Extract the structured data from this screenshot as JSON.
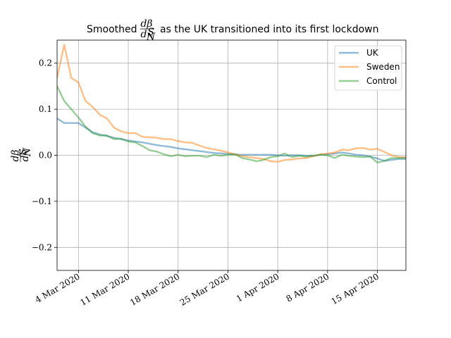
{
  "chart_data": {
    "type": "line",
    "title": "Smoothed as the UK transitioned into its first lockdown",
    "title_math": {
      "numerator": "dβ",
      "denominator_prefix": "d",
      "denominator_num": "S",
      "denominator_den": "N"
    },
    "ylabel_math": {
      "numerator": "dβ",
      "denominator_prefix": "d",
      "denominator_num": "S",
      "denominator_den": "N"
    },
    "xlabel": "",
    "x_start": "2020-03-01",
    "x_end": "2020-04-19",
    "x_ticks": [
      {
        "date": "2020-03-04",
        "label": "4 Mar 2020"
      },
      {
        "date": "2020-03-11",
        "label": "11 Mar 2020"
      },
      {
        "date": "2020-03-18",
        "label": "18 Mar 2020"
      },
      {
        "date": "2020-03-25",
        "label": "25 Mar 2020"
      },
      {
        "date": "2020-04-01",
        "label": "1 Apr 2020"
      },
      {
        "date": "2020-04-08",
        "label": "8 Apr 2020"
      },
      {
        "date": "2020-04-15",
        "label": "15 Apr 2020"
      }
    ],
    "ylim": [
      -0.25,
      0.25
    ],
    "y_ticks": [
      {
        "value": 0.2,
        "label": "0.2"
      },
      {
        "value": 0.1,
        "label": "0.1"
      },
      {
        "value": 0.0,
        "label": "0.0"
      },
      {
        "value": -0.1,
        "label": "−0.1"
      },
      {
        "value": -0.2,
        "label": "−0.2"
      }
    ],
    "grid": true,
    "legend_position": "top-right",
    "series": [
      {
        "name": "UK",
        "color": "#1f77b4",
        "points": [
          [
            "2020-02-29",
            0.115
          ],
          [
            "2020-03-01",
            0.08
          ],
          [
            "2020-03-02",
            0.07
          ],
          [
            "2020-03-03",
            0.07
          ],
          [
            "2020-03-04",
            0.07
          ],
          [
            "2020-03-05",
            0.06
          ],
          [
            "2020-03-06",
            0.05
          ],
          [
            "2020-03-07",
            0.045
          ],
          [
            "2020-03-08",
            0.042
          ],
          [
            "2020-03-09",
            0.038
          ],
          [
            "2020-03-10",
            0.035
          ],
          [
            "2020-03-11",
            0.032
          ],
          [
            "2020-03-12",
            0.03
          ],
          [
            "2020-03-13",
            0.028
          ],
          [
            "2020-03-14",
            0.025
          ],
          [
            "2020-03-15",
            0.022
          ],
          [
            "2020-03-16",
            0.02
          ],
          [
            "2020-03-17",
            0.018
          ],
          [
            "2020-03-18",
            0.015
          ],
          [
            "2020-03-19",
            0.013
          ],
          [
            "2020-03-20",
            0.011
          ],
          [
            "2020-03-21",
            0.009
          ],
          [
            "2020-03-22",
            0.007
          ],
          [
            "2020-03-23",
            0.005
          ],
          [
            "2020-03-24",
            0.004
          ],
          [
            "2020-03-25",
            0.003
          ],
          [
            "2020-03-26",
            0.002
          ],
          [
            "2020-03-27",
            0.001
          ],
          [
            "2020-03-28",
            0.001
          ],
          [
            "2020-03-29",
            0.001
          ],
          [
            "2020-03-30",
            0.001
          ],
          [
            "2020-03-31",
            0.001
          ],
          [
            "2020-04-01",
            0.0
          ],
          [
            "2020-04-02",
            -0.001
          ],
          [
            "2020-04-03",
            0.0
          ],
          [
            "2020-04-04",
            0.0
          ],
          [
            "2020-04-05",
            -0.001
          ],
          [
            "2020-04-06",
            -0.001
          ],
          [
            "2020-04-07",
            0.001
          ],
          [
            "2020-04-08",
            0.002
          ],
          [
            "2020-04-09",
            0.004
          ],
          [
            "2020-04-10",
            0.006
          ],
          [
            "2020-04-11",
            0.004
          ],
          [
            "2020-04-12",
            0.001
          ],
          [
            "2020-04-13",
            0.0
          ],
          [
            "2020-04-14",
            -0.003
          ],
          [
            "2020-04-15",
            -0.007
          ],
          [
            "2020-04-16",
            -0.012
          ],
          [
            "2020-04-17",
            -0.01
          ],
          [
            "2020-04-18",
            -0.008
          ],
          [
            "2020-04-19",
            -0.008
          ]
        ]
      },
      {
        "name": "Sweden",
        "color": "#ff7f0e",
        "points": [
          [
            "2020-02-29",
            0.25
          ],
          [
            "2020-03-01",
            0.168
          ],
          [
            "2020-03-02",
            0.24
          ],
          [
            "2020-03-03",
            0.168
          ],
          [
            "2020-03-04",
            0.158
          ],
          [
            "2020-03-05",
            0.118
          ],
          [
            "2020-03-06",
            0.105
          ],
          [
            "2020-03-07",
            0.088
          ],
          [
            "2020-03-08",
            0.08
          ],
          [
            "2020-03-09",
            0.06
          ],
          [
            "2020-03-10",
            0.052
          ],
          [
            "2020-03-11",
            0.048
          ],
          [
            "2020-03-12",
            0.048
          ],
          [
            "2020-03-13",
            0.04
          ],
          [
            "2020-03-14",
            0.039
          ],
          [
            "2020-03-15",
            0.038
          ],
          [
            "2020-03-16",
            0.035
          ],
          [
            "2020-03-17",
            0.035
          ],
          [
            "2020-03-18",
            0.031
          ],
          [
            "2020-03-19",
            0.028
          ],
          [
            "2020-03-20",
            0.027
          ],
          [
            "2020-03-21",
            0.021
          ],
          [
            "2020-03-22",
            0.016
          ],
          [
            "2020-03-23",
            0.013
          ],
          [
            "2020-03-24",
            0.01
          ],
          [
            "2020-03-25",
            0.006
          ],
          [
            "2020-03-26",
            0.002
          ],
          [
            "2020-03-27",
            -0.002
          ],
          [
            "2020-03-28",
            -0.004
          ],
          [
            "2020-03-29",
            -0.006
          ],
          [
            "2020-03-30",
            -0.008
          ],
          [
            "2020-03-31",
            -0.013
          ],
          [
            "2020-04-01",
            -0.014
          ],
          [
            "2020-04-02",
            -0.01
          ],
          [
            "2020-04-03",
            -0.009
          ],
          [
            "2020-04-04",
            -0.007
          ],
          [
            "2020-04-05",
            -0.006
          ],
          [
            "2020-04-06",
            -0.002
          ],
          [
            "2020-04-07",
            0.002
          ],
          [
            "2020-04-08",
            0.004
          ],
          [
            "2020-04-09",
            0.006
          ],
          [
            "2020-04-10",
            0.012
          ],
          [
            "2020-04-11",
            0.011
          ],
          [
            "2020-04-12",
            0.015
          ],
          [
            "2020-04-13",
            0.016
          ],
          [
            "2020-04-14",
            0.012
          ],
          [
            "2020-04-15",
            0.014
          ],
          [
            "2020-04-16",
            0.007
          ],
          [
            "2020-04-17",
            0.0
          ],
          [
            "2020-04-18",
            -0.004
          ],
          [
            "2020-04-19",
            -0.004
          ]
        ]
      },
      {
        "name": "Control",
        "color": "#2ca02c",
        "points": [
          [
            "2020-02-29",
            0.157
          ],
          [
            "2020-03-01",
            0.15
          ],
          [
            "2020-03-02",
            0.118
          ],
          [
            "2020-03-03",
            0.1
          ],
          [
            "2020-03-04",
            0.082
          ],
          [
            "2020-03-05",
            0.062
          ],
          [
            "2020-03-06",
            0.048
          ],
          [
            "2020-03-07",
            0.043
          ],
          [
            "2020-03-08",
            0.043
          ],
          [
            "2020-03-09",
            0.035
          ],
          [
            "2020-03-10",
            0.036
          ],
          [
            "2020-03-11",
            0.03
          ],
          [
            "2020-03-12",
            0.028
          ],
          [
            "2020-03-13",
            0.02
          ],
          [
            "2020-03-14",
            0.011
          ],
          [
            "2020-03-15",
            0.008
          ],
          [
            "2020-03-16",
            0.002
          ],
          [
            "2020-03-17",
            -0.002
          ],
          [
            "2020-03-18",
            0.001
          ],
          [
            "2020-03-19",
            -0.002
          ],
          [
            "2020-03-20",
            -0.001
          ],
          [
            "2020-03-21",
            -0.001
          ],
          [
            "2020-03-22",
            -0.004
          ],
          [
            "2020-03-23",
            0.001
          ],
          [
            "2020-03-24",
            -0.001
          ],
          [
            "2020-03-25",
            0.001
          ],
          [
            "2020-03-26",
            0.002
          ],
          [
            "2020-03-27",
            -0.006
          ],
          [
            "2020-03-28",
            -0.009
          ],
          [
            "2020-03-29",
            -0.013
          ],
          [
            "2020-03-30",
            -0.01
          ],
          [
            "2020-03-31",
            -0.004
          ],
          [
            "2020-04-01",
            -0.002
          ],
          [
            "2020-04-02",
            0.004
          ],
          [
            "2020-04-03",
            -0.004
          ],
          [
            "2020-04-04",
            -0.001
          ],
          [
            "2020-04-05",
            -0.003
          ],
          [
            "2020-04-06",
            -0.001
          ],
          [
            "2020-04-07",
            0.001
          ],
          [
            "2020-04-08",
            0.0
          ],
          [
            "2020-04-09",
            -0.006
          ],
          [
            "2020-04-10",
            0.001
          ],
          [
            "2020-04-11",
            -0.001
          ],
          [
            "2020-04-12",
            -0.003
          ],
          [
            "2020-04-13",
            -0.004
          ],
          [
            "2020-04-14",
            -0.003
          ],
          [
            "2020-04-15",
            -0.016
          ],
          [
            "2020-04-16",
            -0.012
          ],
          [
            "2020-04-17",
            -0.006
          ],
          [
            "2020-04-18",
            -0.006
          ],
          [
            "2020-04-19",
            -0.006
          ]
        ]
      }
    ]
  }
}
